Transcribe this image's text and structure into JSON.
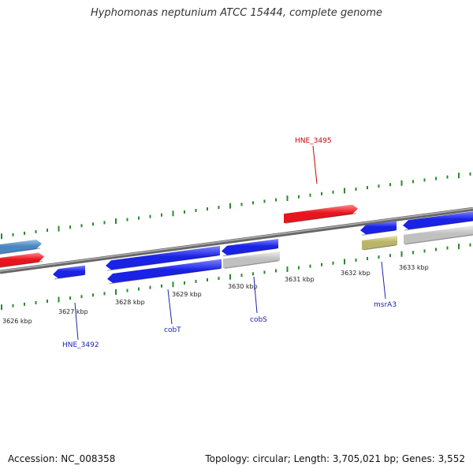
{
  "title": "Hyphomonas neptunium ATCC 15444, complete genome",
  "footer": {
    "accession": "Accession: NC_008358",
    "stats": "Topology: circular; Length: 3,705,021 bp; Genes: 3,552"
  },
  "colors": {
    "backbone": "#8a8a8a",
    "forward_gene": "#e8141e",
    "reverse_gene": "#1a22e6",
    "other_gene": "#c0c0c0",
    "rna_gene": "#b9b46a",
    "legacy_gene": "#4a86c0",
    "tick": "#2a8a2a",
    "label_red": "#cc0000",
    "label_blue": "#1a22b0"
  },
  "ticks": [
    {
      "label": "3626 kbp"
    },
    {
      "label": "3627 kbp"
    },
    {
      "label": "3628 kbp"
    },
    {
      "label": "3629 kbp"
    },
    {
      "label": "3630 kbp"
    },
    {
      "label": "3631 kbp"
    },
    {
      "label": "3632 kbp"
    },
    {
      "label": "3633 kbp"
    }
  ],
  "gene_labels": [
    {
      "text": "HNE_3495",
      "color": "label_red"
    },
    {
      "text": "HNE_3492",
      "color": "label_blue"
    },
    {
      "text": "cobT",
      "color": "label_blue"
    },
    {
      "text": "cobS",
      "color": "label_blue"
    },
    {
      "text": "msrA3",
      "color": "label_blue"
    }
  ]
}
